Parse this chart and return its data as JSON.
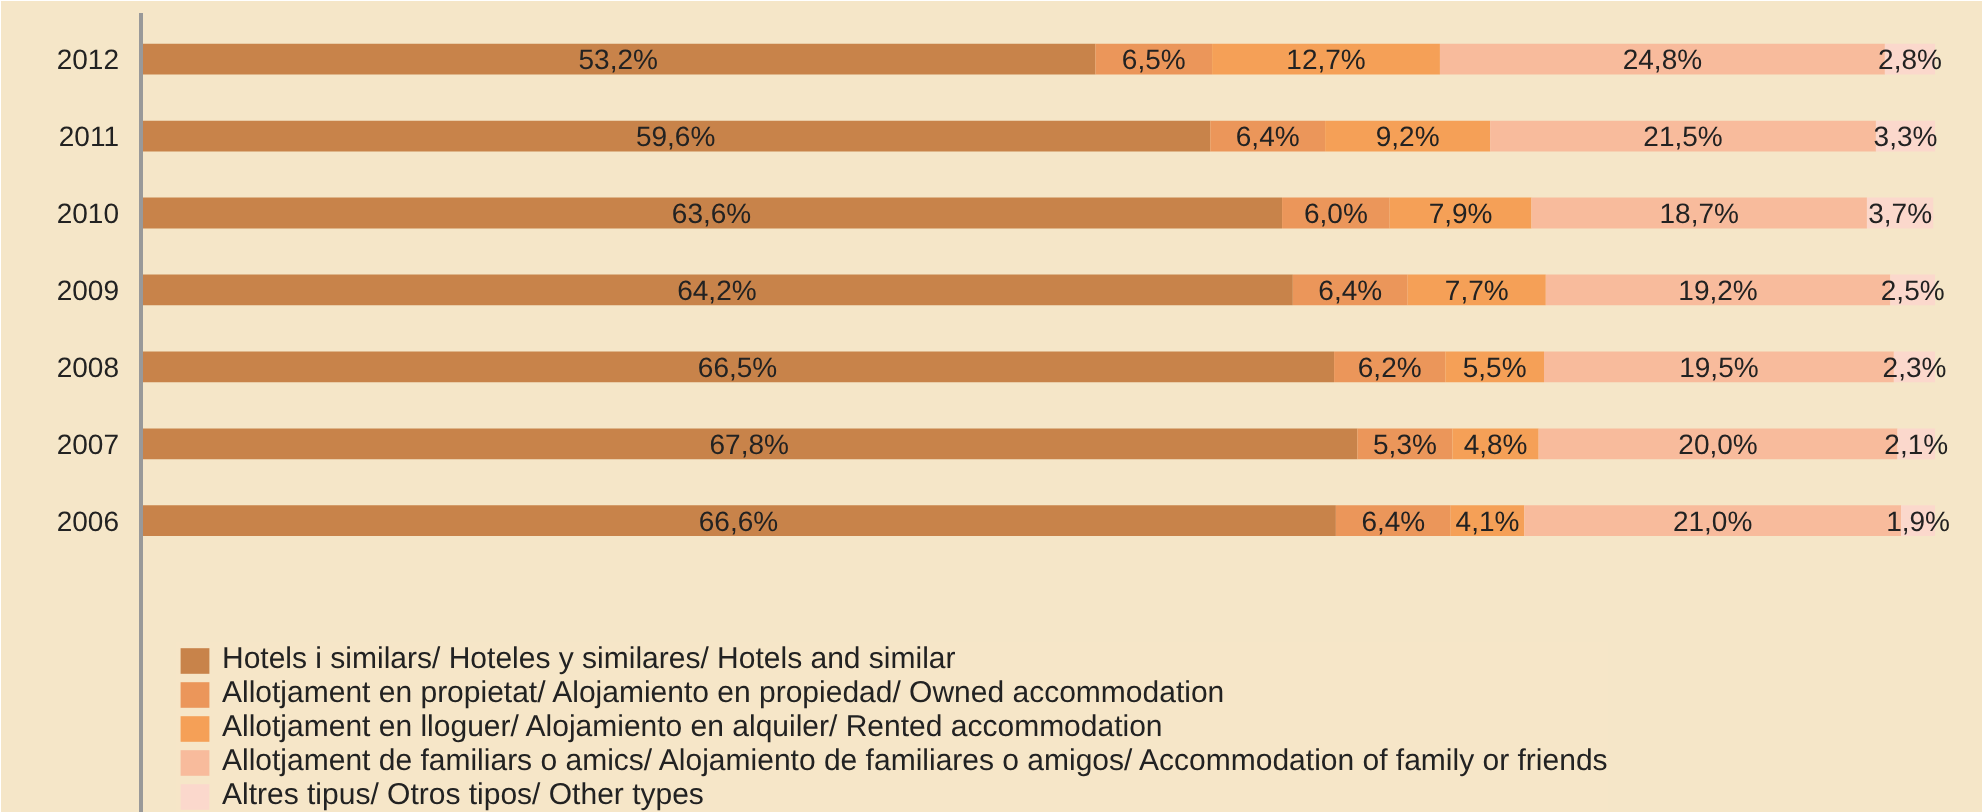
{
  "chart_data": {
    "type": "bar",
    "orientation": "horizontal",
    "stacked": true,
    "legend": "bottom",
    "grid": false,
    "categories": [
      "2012",
      "2011",
      "2010",
      "2009",
      "2008",
      "2007",
      "2006"
    ],
    "series": [
      {
        "name": "Hotels i similars/ Hoteles y similares/ Hotels and similar",
        "color": "#c8834a",
        "values": [
          53.2,
          59.6,
          63.6,
          64.2,
          66.5,
          67.8,
          66.6
        ],
        "value_labels": [
          "53,2%",
          "59,6%",
          "63,6%",
          "64,2%",
          "66,5%",
          "67,8%",
          "66,6%"
        ]
      },
      {
        "name": "Allotjament en propietat/ Alojamiento en propiedad/ Owned accommodation",
        "color": "#eb965a",
        "values": [
          6.5,
          6.4,
          6.0,
          6.4,
          6.2,
          5.3,
          6.4
        ],
        "value_labels": [
          "6,5%",
          "6,4%",
          "6,0%",
          "6,4%",
          "6,2%",
          "5,3%",
          "6,4%"
        ]
      },
      {
        "name": "Allotjament en lloguer/ Alojamiento en alquiler/ Rented accommodation",
        "color": "#f5a057",
        "values": [
          12.7,
          9.2,
          7.9,
          7.7,
          5.5,
          4.8,
          4.1
        ],
        "value_labels": [
          "12,7%",
          "9,2%",
          "7,9%",
          "7,7%",
          "5,5%",
          "4,8%",
          "4,1%"
        ]
      },
      {
        "name": "Allotjament de familiars o amics/ Alojamiento de familiares o amigos/ Accommodation of family or friends",
        "color": "#f8bb9c",
        "values": [
          24.8,
          21.5,
          18.7,
          19.2,
          19.5,
          20.0,
          21.0
        ],
        "value_labels": [
          "24,8%",
          "21,5%",
          "18,7%",
          "19,2%",
          "19,5%",
          "20,0%",
          "21,0%"
        ]
      },
      {
        "name": "Altres tipus/ Otros tipos/ Other types",
        "color": "#fbd8cc",
        "values": [
          2.8,
          3.3,
          3.7,
          2.5,
          2.3,
          2.1,
          1.9
        ],
        "value_labels": [
          "2,8%",
          "3,3%",
          "3,7%",
          "2,5%",
          "2,3%",
          "2,1%",
          "1,9%"
        ]
      }
    ]
  }
}
